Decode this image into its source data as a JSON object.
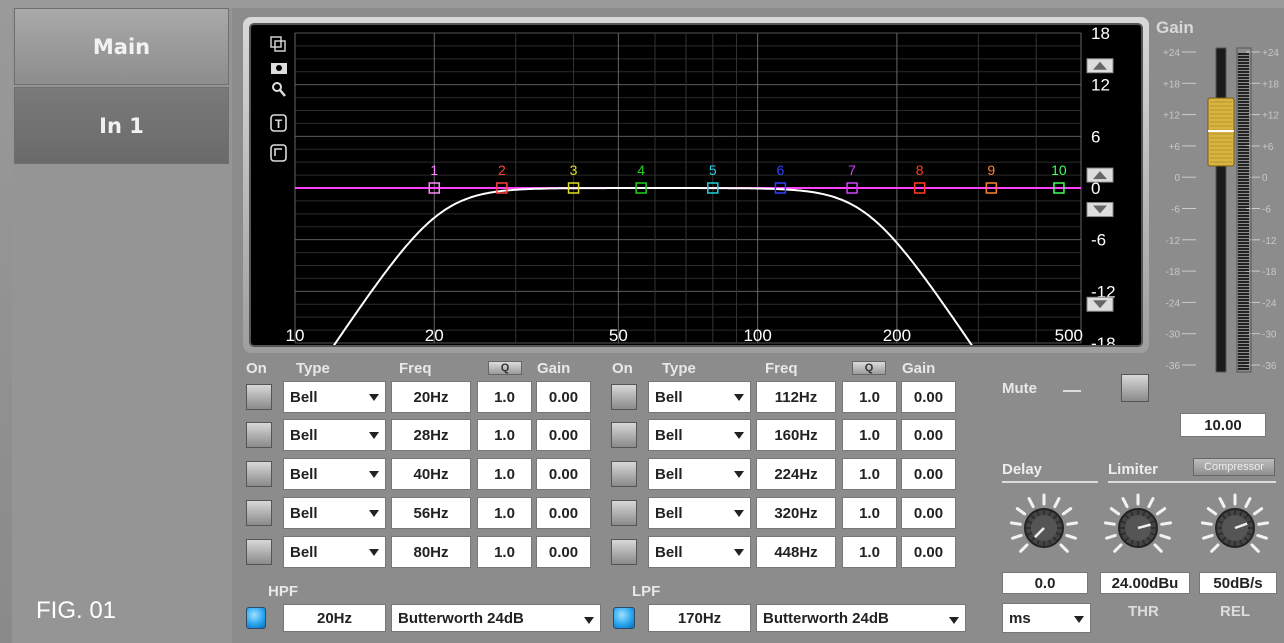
{
  "tabs": {
    "main": "Main",
    "in1": "In 1"
  },
  "figure_label": "FIG. 01",
  "graph": {
    "y_labels": [
      "18",
      "12",
      "6",
      "0",
      "-6",
      "-12",
      "-18"
    ],
    "x_labels": [
      "10",
      "20",
      "50",
      "100",
      "200",
      "500"
    ],
    "band_markers": [
      "1",
      "2",
      "3",
      "4",
      "5",
      "6",
      "7",
      "8",
      "9",
      "10"
    ],
    "band_colors": [
      "#ff88ff",
      "#ff4040",
      "#e0e020",
      "#20d020",
      "#20d0e0",
      "#3040ff",
      "#d040ff",
      "#ff4020",
      "#ff8030",
      "#40ff60"
    ]
  },
  "eq_headers": {
    "on": "On",
    "type": "Type",
    "freq": "Freq",
    "q": "Q",
    "gain": "Gain"
  },
  "bands_left": [
    {
      "type": "Bell",
      "freq": "20Hz",
      "q": "1.0",
      "gain": "0.00"
    },
    {
      "type": "Bell",
      "freq": "28Hz",
      "q": "1.0",
      "gain": "0.00"
    },
    {
      "type": "Bell",
      "freq": "40Hz",
      "q": "1.0",
      "gain": "0.00"
    },
    {
      "type": "Bell",
      "freq": "56Hz",
      "q": "1.0",
      "gain": "0.00"
    },
    {
      "type": "Bell",
      "freq": "80Hz",
      "q": "1.0",
      "gain": "0.00"
    }
  ],
  "bands_right": [
    {
      "type": "Bell",
      "freq": "112Hz",
      "q": "1.0",
      "gain": "0.00"
    },
    {
      "type": "Bell",
      "freq": "160Hz",
      "q": "1.0",
      "gain": "0.00"
    },
    {
      "type": "Bell",
      "freq": "224Hz",
      "q": "1.0",
      "gain": "0.00"
    },
    {
      "type": "Bell",
      "freq": "320Hz",
      "q": "1.0",
      "gain": "0.00"
    },
    {
      "type": "Bell",
      "freq": "448Hz",
      "q": "1.0",
      "gain": "0.00"
    }
  ],
  "hpf": {
    "label": "HPF",
    "freq": "20Hz",
    "type": "Butterworth 24dB"
  },
  "lpf": {
    "label": "LPF",
    "freq": "170Hz",
    "type": "Butterworth 24dB"
  },
  "gain": {
    "title": "Gain",
    "value": "10.00",
    "scale": [
      "+24",
      "+18",
      "+12",
      "+6",
      "0",
      "-6",
      "-12",
      "-18",
      "-24",
      "-30",
      "-36"
    ],
    "scale_right": [
      "+24",
      "+18",
      "+12",
      "+6",
      "0",
      "-6",
      "-12",
      "-18",
      "-24",
      "-30",
      "-36"
    ]
  },
  "mute": {
    "label": "Mute"
  },
  "delay": {
    "label": "Delay",
    "value": "0.0",
    "unit": "ms"
  },
  "limiter": {
    "label": "Limiter",
    "compressor_button": "Compressor",
    "thr_value": "24.00dBu",
    "thr_label": "THR",
    "rel_value": "50dB/s",
    "rel_label": "REL"
  }
}
